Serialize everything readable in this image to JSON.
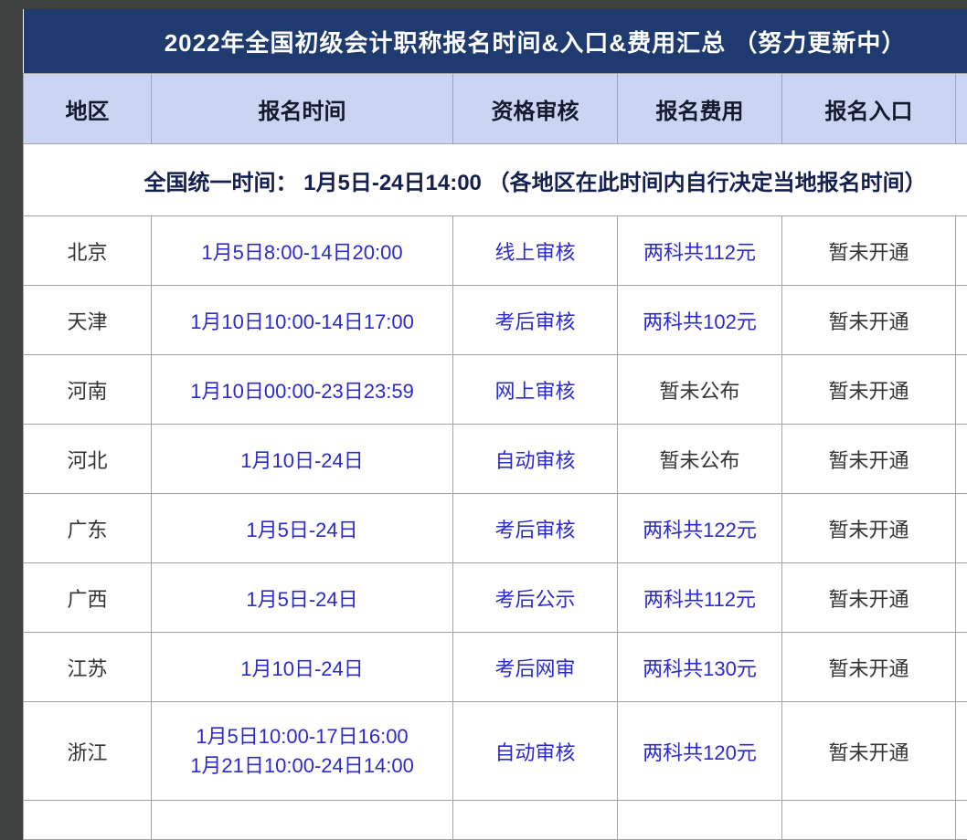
{
  "page": {
    "title": "2022年全国初级会计职称报名时间&入口&费用汇总 （努力更新中）"
  },
  "table": {
    "columns": [
      "地区",
      "报名时间",
      "资格审核",
      "报名费用",
      "报名入口"
    ],
    "notice": "全国统一时间： 1月5日-24日14:00 （各地区在此时间内自行决定当地报名时间）",
    "rows": [
      {
        "region": "北京",
        "time": "1月5日8:00-14日20:00",
        "review": "线上审核",
        "fee": "两科共112元",
        "entry": "暂未开通"
      },
      {
        "region": "天津",
        "time": "1月10日10:00-14日17:00",
        "review": "考后审核",
        "fee": "两科共102元",
        "entry": "暂未开通"
      },
      {
        "region": "河南",
        "time": "1月10日00:00-23日23:59",
        "review": "网上审核",
        "fee": "暂未公布",
        "entry": "暂未开通"
      },
      {
        "region": "河北",
        "time": "1月10日-24日",
        "review": "自动审核",
        "fee": "暂未公布",
        "entry": "暂未开通"
      },
      {
        "region": "广东",
        "time": "1月5日-24日",
        "review": "考后审核",
        "fee": "两科共122元",
        "entry": "暂未开通"
      },
      {
        "region": "广西",
        "time": "1月5日-24日",
        "review": "考后公示",
        "fee": "两科共112元",
        "entry": "暂未开通"
      },
      {
        "region": "江苏",
        "time": "1月10日-24日",
        "review": "考后网审",
        "fee": "两科共130元",
        "entry": "暂未开通"
      },
      {
        "region": "浙江",
        "time": "1月5日10:00-17日16:00",
        "time2": "1月21日10:00-24日14:00",
        "review": "自动审核",
        "fee": "两科共120元",
        "entry": "暂未开通"
      }
    ]
  },
  "colors": {
    "title_bg": "#1e3a6e",
    "header_bg": "#cbd4f3",
    "link_blue": "#2b2bc9",
    "text_dark": "#333333",
    "notice_text": "#14204f",
    "frame_bg": "#3f4040",
    "border": "#a3a3a3"
  }
}
